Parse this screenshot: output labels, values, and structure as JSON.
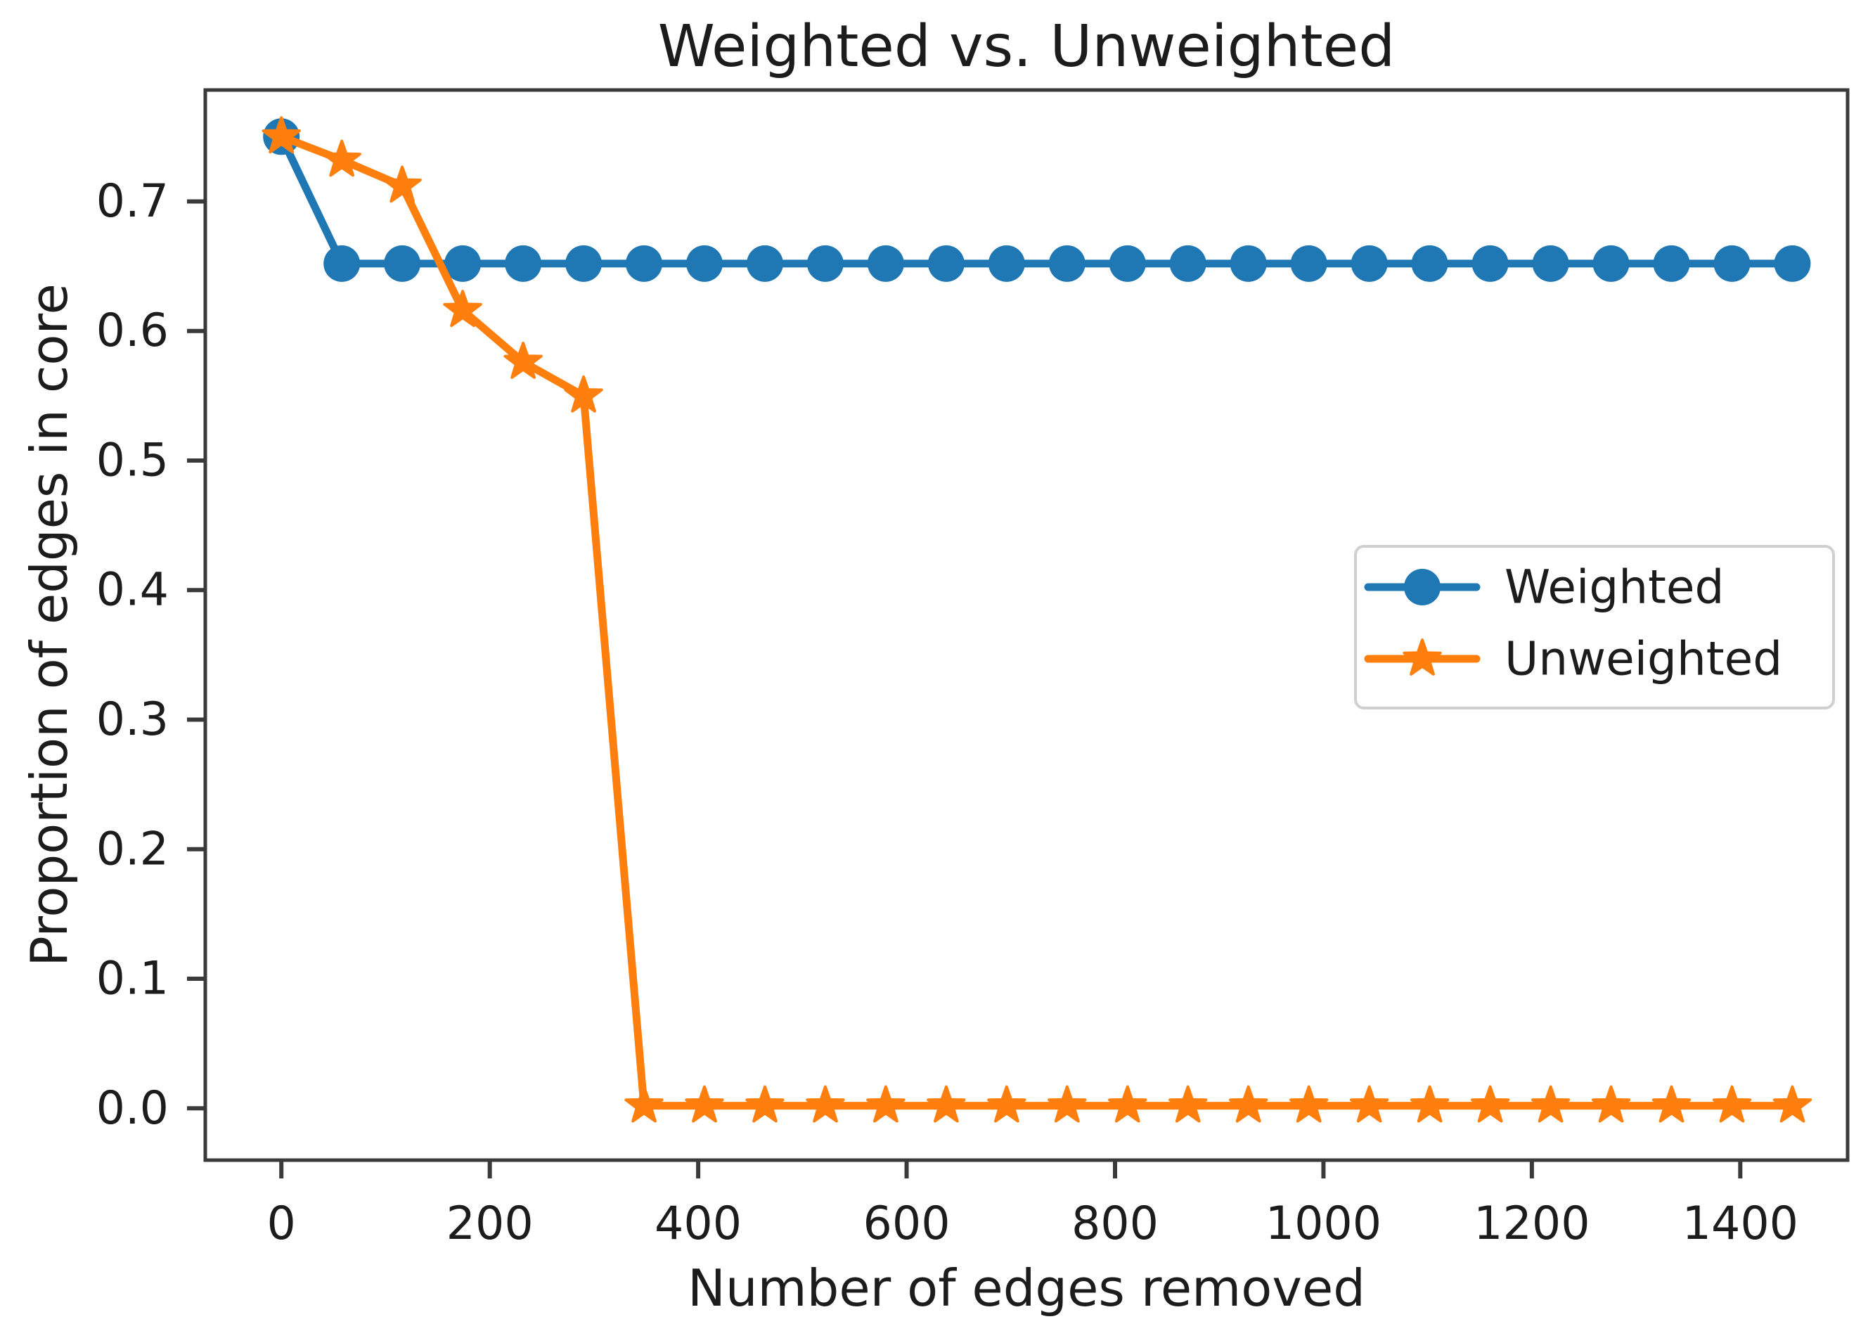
{
  "chart_data": {
    "type": "line",
    "title": "Weighted vs. Unweighted",
    "xlabel": "Number of edges removed",
    "ylabel": "Proportion of edges in core",
    "x": [
      0,
      58,
      116,
      174,
      232,
      290,
      348,
      406,
      464,
      522,
      580,
      638,
      696,
      754,
      812,
      870,
      928,
      986,
      1044,
      1102,
      1160,
      1218,
      1276,
      1334,
      1392,
      1450
    ],
    "series": [
      {
        "name": "Weighted",
        "color": "#1f77b4",
        "marker": "circle",
        "values": [
          0.75,
          0.652,
          0.652,
          0.652,
          0.652,
          0.652,
          0.652,
          0.652,
          0.652,
          0.652,
          0.652,
          0.652,
          0.652,
          0.652,
          0.652,
          0.652,
          0.652,
          0.652,
          0.652,
          0.652,
          0.652,
          0.652,
          0.652,
          0.652,
          0.652,
          0.652
        ]
      },
      {
        "name": "Unweighted",
        "color": "#ff7f0e",
        "marker": "star",
        "values": [
          0.75,
          0.732,
          0.712,
          0.616,
          0.576,
          0.55,
          0.002,
          0.002,
          0.002,
          0.002,
          0.002,
          0.002,
          0.002,
          0.002,
          0.002,
          0.002,
          0.002,
          0.002,
          0.002,
          0.002,
          0.002,
          0.002,
          0.002,
          0.002,
          0.002,
          0.002
        ]
      }
    ],
    "xlim": [
      -73,
      1503
    ],
    "ylim": [
      -0.04,
      0.786
    ],
    "x_ticks": {
      "values": [
        0,
        200,
        400,
        600,
        800,
        1000,
        1200,
        1400
      ],
      "labels": [
        "0",
        "200",
        "400",
        "600",
        "800",
        "1000",
        "1200",
        "1400"
      ]
    },
    "y_ticks": {
      "values": [
        0.0,
        0.1,
        0.2,
        0.3,
        0.4,
        0.5,
        0.6,
        0.7
      ],
      "labels": [
        "0.0",
        "0.1",
        "0.2",
        "0.3",
        "0.4",
        "0.5",
        "0.6",
        "0.7"
      ]
    },
    "grid": false,
    "legend_position": "center right"
  },
  "colors": {
    "axis": "#3a3a3a",
    "text": "#1c1c1c",
    "legend_border": "#cfcfcf",
    "background": "#ffffff"
  }
}
